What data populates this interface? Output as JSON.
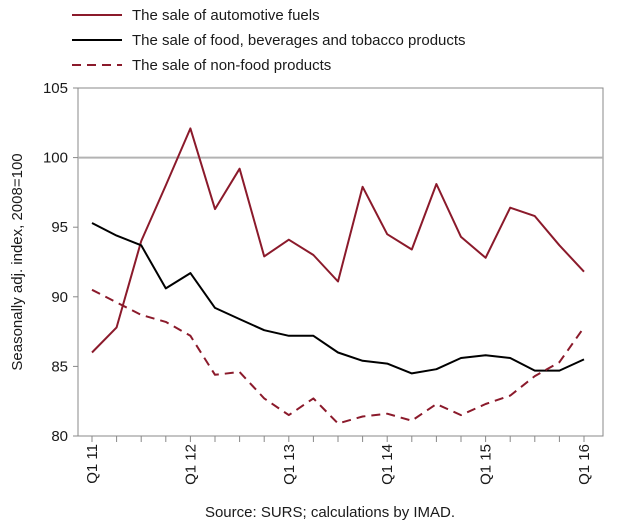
{
  "chart_data": {
    "type": "line",
    "ylabel": "Seasonally adj. index, 2008=100",
    "ylim": [
      80,
      105
    ],
    "yticks": [
      80,
      85,
      90,
      95,
      100,
      105
    ],
    "reference_line": 100,
    "x": [
      "Q1 11",
      "Q2 11",
      "Q3 11",
      "Q4 11",
      "Q1 12",
      "Q2 12",
      "Q3 12",
      "Q4 12",
      "Q1 13",
      "Q2 13",
      "Q3 13",
      "Q4 13",
      "Q1 14",
      "Q2 14",
      "Q3 14",
      "Q4 14",
      "Q1 15",
      "Q2 15",
      "Q3 15",
      "Q4 15",
      "Q1 16"
    ],
    "x_tick_labels": [
      "Q1 11",
      "Q1 12",
      "Q1 13",
      "Q1 14",
      "Q1 15",
      "Q1 16"
    ],
    "legend_position": "top-left",
    "grid": false,
    "series": [
      {
        "name": "The sale of automotive fuels",
        "color": "#8b1a2b",
        "style": "solid",
        "values": [
          86.0,
          87.8,
          94.0,
          98.0,
          102.1,
          96.3,
          99.2,
          92.9,
          94.1,
          93.0,
          91.1,
          97.9,
          94.5,
          93.4,
          98.1,
          94.3,
          92.8,
          96.4,
          95.8,
          93.7,
          91.8
        ]
      },
      {
        "name": "The sale of food, beverages and tobacco products",
        "color": "#000000",
        "style": "solid",
        "values": [
          95.3,
          94.4,
          93.7,
          90.6,
          91.7,
          89.2,
          88.4,
          87.6,
          87.2,
          87.2,
          86.0,
          85.4,
          85.2,
          84.5,
          84.8,
          85.6,
          85.8,
          85.6,
          84.7,
          84.7,
          85.5
        ]
      },
      {
        "name": "The sale of non-food products",
        "color": "#8b1a2b",
        "style": "dashed",
        "values": [
          90.5,
          89.6,
          88.7,
          88.2,
          87.2,
          84.4,
          84.6,
          82.7,
          81.5,
          82.7,
          80.9,
          81.4,
          81.6,
          81.1,
          82.3,
          81.5,
          82.3,
          82.9,
          84.3,
          85.3,
          87.8
        ]
      }
    ],
    "source": "Source: SURS; calculations by IMAD."
  }
}
